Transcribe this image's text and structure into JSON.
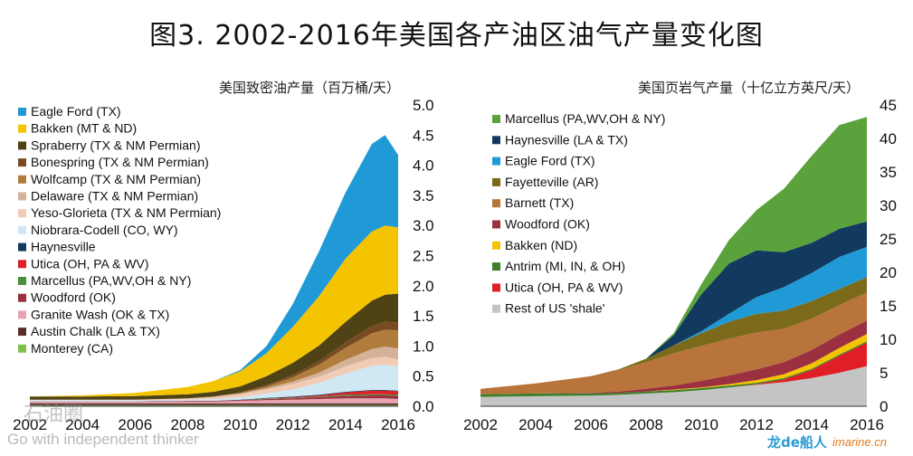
{
  "title": "图3. 2002-2016年美国各产油区油气产量变化图",
  "watermark_left": {
    "brand": "石油圈",
    "tagline": "Go with independent thinker"
  },
  "watermark_right": {
    "brand": "龙de船人",
    "site": "imarine.cn"
  },
  "chart_data": [
    {
      "type": "area",
      "stacked": true,
      "subtitle": "美国致密油产量（百万桶/天）",
      "x_ticks": [
        "2002",
        "2004",
        "2006",
        "2008",
        "2010",
        "2012",
        "2014",
        "2016"
      ],
      "ylim": [
        0,
        5.0
      ],
      "y_ticks": [
        "0.0",
        "0.5",
        "1.0",
        "1.5",
        "2.0",
        "2.5",
        "3.0",
        "3.5",
        "4.0",
        "4.5",
        "5.0"
      ],
      "y_axis_side": "right",
      "legend_position": "top-left",
      "x": [
        2002,
        2004,
        2006,
        2008,
        2009,
        2010,
        2011,
        2012,
        2013,
        2014,
        2015,
        2015.5,
        2016
      ],
      "series": [
        {
          "name": "Monterey (CA)",
          "color": "#7fbf4f",
          "values": [
            0.02,
            0.02,
            0.02,
            0.02,
            0.02,
            0.02,
            0.02,
            0.02,
            0.02,
            0.02,
            0.02,
            0.02,
            0.02
          ]
        },
        {
          "name": "Austin Chalk (LA & TX)",
          "color": "#5a2d2d",
          "values": [
            0.03,
            0.03,
            0.03,
            0.03,
            0.03,
            0.03,
            0.03,
            0.03,
            0.03,
            0.03,
            0.03,
            0.03,
            0.03
          ]
        },
        {
          "name": "Granite Wash (OK & TX)",
          "color": "#e8a3b0",
          "values": [
            0.02,
            0.02,
            0.02,
            0.03,
            0.03,
            0.04,
            0.05,
            0.06,
            0.07,
            0.08,
            0.08,
            0.08,
            0.07
          ]
        },
        {
          "name": "Woodford (OK)",
          "color": "#9a3040",
          "values": [
            0.01,
            0.01,
            0.01,
            0.01,
            0.01,
            0.01,
            0.02,
            0.02,
            0.03,
            0.04,
            0.05,
            0.05,
            0.05
          ]
        },
        {
          "name": "Marcellus (PA,WV,OH & NY)",
          "color": "#4a8f3c",
          "values": [
            0,
            0,
            0,
            0,
            0,
            0,
            0.01,
            0.01,
            0.01,
            0.02,
            0.02,
            0.02,
            0.02
          ]
        },
        {
          "name": "Utica (OH, PA & WV)",
          "color": "#e01e26",
          "values": [
            0,
            0,
            0,
            0,
            0,
            0,
            0,
            0.01,
            0.02,
            0.04,
            0.06,
            0.06,
            0.06
          ]
        },
        {
          "name": "Haynesville",
          "color": "#12395e",
          "values": [
            0,
            0,
            0,
            0,
            0,
            0.01,
            0.01,
            0.01,
            0.01,
            0.01,
            0.01,
            0.01,
            0.01
          ]
        },
        {
          "name": "Niobrara-Codell (CO, WY)",
          "color": "#cfe8f3",
          "values": [
            0.02,
            0.02,
            0.02,
            0.02,
            0.03,
            0.04,
            0.07,
            0.12,
            0.2,
            0.3,
            0.4,
            0.42,
            0.4
          ]
        },
        {
          "name": "Yeso-Glorieta (TX & NM Permian)",
          "color": "#f2cbb5",
          "values": [
            0.01,
            0.01,
            0.01,
            0.02,
            0.03,
            0.05,
            0.07,
            0.09,
            0.1,
            0.12,
            0.13,
            0.13,
            0.12
          ]
        },
        {
          "name": "Delaware (TX & NM Permian)",
          "color": "#d4b29a",
          "values": [
            0,
            0,
            0,
            0,
            0.01,
            0.01,
            0.02,
            0.04,
            0.07,
            0.11,
            0.15,
            0.17,
            0.18
          ]
        },
        {
          "name": "Wolfcamp (TX & NM Permian)",
          "color": "#b07d3c",
          "values": [
            0,
            0,
            0,
            0,
            0,
            0.01,
            0.03,
            0.07,
            0.13,
            0.2,
            0.26,
            0.28,
            0.3
          ]
        },
        {
          "name": "Bonespring (TX & NM Permian)",
          "color": "#7a4a22",
          "values": [
            0,
            0,
            0,
            0,
            0,
            0.01,
            0.02,
            0.04,
            0.06,
            0.09,
            0.12,
            0.13,
            0.13
          ]
        },
        {
          "name": "Spraberry (TX & NM Permian)",
          "color": "#4f4315",
          "values": [
            0.05,
            0.05,
            0.06,
            0.07,
            0.08,
            0.1,
            0.15,
            0.2,
            0.26,
            0.34,
            0.42,
            0.45,
            0.48
          ]
        },
        {
          "name": "Bakken (MT & ND)",
          "color": "#f5c400",
          "values": [
            0,
            0.02,
            0.05,
            0.12,
            0.18,
            0.25,
            0.38,
            0.6,
            0.82,
            1.05,
            1.15,
            1.15,
            1.1
          ]
        },
        {
          "name": "Eagle Ford (TX)",
          "color": "#1f9ad6",
          "values": [
            0,
            0,
            0,
            0,
            0,
            0.02,
            0.12,
            0.38,
            0.75,
            1.1,
            1.45,
            1.5,
            1.2
          ]
        }
      ]
    },
    {
      "type": "area",
      "stacked": true,
      "subtitle": "美国页岩气产量（十亿立方英尺/天）",
      "x_ticks": [
        "2002",
        "2004",
        "2006",
        "2008",
        "2010",
        "2012",
        "2014",
        "2016"
      ],
      "ylim": [
        0,
        45
      ],
      "y_ticks": [
        "0",
        "5",
        "10",
        "15",
        "20",
        "25",
        "30",
        "35",
        "40",
        "45"
      ],
      "y_axis_side": "right",
      "legend_position": "top-left",
      "x": [
        2002,
        2004,
        2006,
        2007,
        2008,
        2009,
        2010,
        2011,
        2012,
        2013,
        2014,
        2015,
        2016
      ],
      "series": [
        {
          "name": "Rest of US 'shale'",
          "color": "#c4c4c4",
          "values": [
            1.4,
            1.5,
            1.6,
            1.7,
            1.9,
            2.1,
            2.4,
            2.8,
            3.2,
            3.6,
            4.2,
            5.0,
            6.0
          ]
        },
        {
          "name": "Utica (OH, PA & WV)",
          "color": "#e01e26",
          "values": [
            0,
            0,
            0,
            0,
            0,
            0,
            0,
            0,
            0.1,
            0.4,
            1.2,
            2.5,
            3.5
          ]
        },
        {
          "name": "Antrim (MI, IN, & OH)",
          "color": "#3d7f2a",
          "values": [
            0.4,
            0.4,
            0.3,
            0.3,
            0.3,
            0.3,
            0.3,
            0.3,
            0.2,
            0.2,
            0.2,
            0.2,
            0.2
          ]
        },
        {
          "name": "Bakken (ND)",
          "color": "#f5c400",
          "values": [
            0,
            0,
            0,
            0,
            0,
            0.1,
            0.1,
            0.2,
            0.4,
            0.6,
            0.8,
            1.0,
            1.1
          ]
        },
        {
          "name": "Woodford (OK)",
          "color": "#9a3040",
          "values": [
            0,
            0,
            0.1,
            0.2,
            0.4,
            0.6,
            1.0,
            1.3,
            1.6,
            1.8,
            2.0,
            2.0,
            2.0
          ]
        },
        {
          "name": "Barnett (TX)",
          "color": "#b8743a",
          "values": [
            0.8,
            1.5,
            2.5,
            3.2,
            4.0,
            4.8,
            5.2,
            5.5,
            5.5,
            5.0,
            4.7,
            4.4,
            4.2
          ]
        },
        {
          "name": "Fayetteville (AR)",
          "color": "#7a6a1a",
          "values": [
            0,
            0,
            0,
            0.1,
            0.5,
            1.2,
            1.9,
            2.5,
            2.8,
            2.7,
            2.6,
            2.4,
            2.3
          ]
        },
        {
          "name": "Eagle Ford (TX)",
          "color": "#1f9ad6",
          "values": [
            0,
            0,
            0,
            0,
            0,
            0,
            0.3,
            1.2,
            2.5,
            3.5,
            4.2,
            4.8,
            4.5
          ]
        },
        {
          "name": "Haynesville (LA & TX)",
          "color": "#12395e",
          "values": [
            0,
            0,
            0,
            0,
            0,
            1.5,
            5.5,
            7.5,
            7.0,
            5.2,
            4.5,
            4.2,
            3.8
          ]
        },
        {
          "name": "Marcellus (PA,WV,OH & NY)",
          "color": "#5aa23c",
          "values": [
            0,
            0,
            0,
            0,
            0,
            0.3,
            1.5,
            3.5,
            6.0,
            9.5,
            13.0,
            15.5,
            15.6
          ]
        }
      ]
    }
  ]
}
